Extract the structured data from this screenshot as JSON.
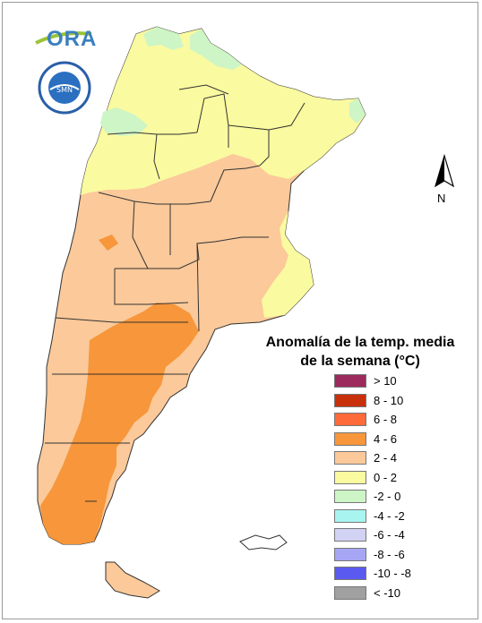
{
  "logo": {
    "text": "ORA"
  },
  "north_arrow": {
    "label": "N"
  },
  "legend": {
    "title_line1": "Anomalía de la temp. media",
    "title_line2": "de la semana (°C)",
    "items": [
      {
        "label": "> 10",
        "color": "#9c2a5c"
      },
      {
        "label": "8 - 10",
        "color": "#c8300c"
      },
      {
        "label": "6 - 8",
        "color": "#ff6a3a"
      },
      {
        "label": "4 - 6",
        "color": "#f7963a"
      },
      {
        "label": "2 - 4",
        "color": "#fbc99a"
      },
      {
        "label": "0 - 2",
        "color": "#fafaa0"
      },
      {
        "label": "-2 - 0",
        "color": "#cdf5c6"
      },
      {
        "label": "-4 - -2",
        "color": "#a8f5f0"
      },
      {
        "label": "-6 - -4",
        "color": "#d2d2f5"
      },
      {
        "label": "-8 - -6",
        "color": "#a6a6f5"
      },
      {
        "label": "-10 - -8",
        "color": "#5a5af0"
      },
      {
        "label": "< -10",
        "color": "#a0a0a0"
      }
    ]
  },
  "map_colors": {
    "anomaly_4_6": "#f7963a",
    "anomaly_2_4": "#fbc99a",
    "anomaly_0_2": "#fafaa0",
    "anomaly_m2_0": "#cdf5c6",
    "border": "#333333"
  }
}
